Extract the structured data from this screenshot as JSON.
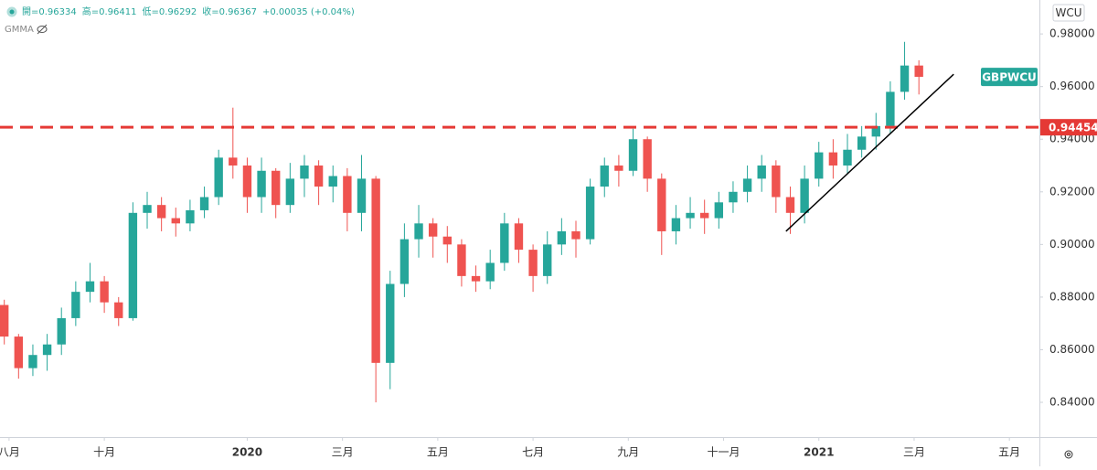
{
  "chart_data": {
    "type": "candlestick",
    "header": [
      "開=0.96334",
      "高=0.96411",
      "低=0.96292",
      "收=0.96367",
      "+0.00035 (+0.04%)"
    ],
    "indicator": "GMMA",
    "scale_label": "WCU",
    "symbol_tag": "GBPWCU",
    "symbol_price": 0.96367,
    "up_color": "#26a69a",
    "down_color": "#ef5350",
    "x": [
      -0.1,
      0.2,
      0.5,
      0.8,
      1.1,
      1.4,
      1.7,
      2.0,
      2.3,
      2.6,
      2.9,
      3.2,
      3.5,
      3.8,
      4.1,
      4.4,
      4.7,
      5.0,
      5.3,
      5.6,
      5.9,
      6.2,
      6.5,
      6.8,
      7.1,
      7.4,
      7.7,
      8.0,
      8.3,
      8.6,
      8.9,
      9.2,
      9.5,
      9.8,
      10.1,
      10.4,
      10.7,
      11.0,
      11.3,
      11.6,
      11.9,
      12.2,
      12.5,
      12.8,
      13.1,
      13.4,
      13.7,
      14.0,
      14.3,
      14.6,
      14.9,
      15.2,
      15.5,
      15.8,
      16.1,
      16.4,
      16.7,
      17.0,
      17.3,
      17.6,
      17.9,
      18.2,
      18.5,
      18.8,
      19.1
    ],
    "open": [
      0.877,
      0.865,
      0.853,
      0.858,
      0.862,
      0.872,
      0.882,
      0.886,
      0.878,
      0.872,
      0.912,
      0.915,
      0.91,
      0.908,
      0.913,
      0.918,
      0.933,
      0.93,
      0.918,
      0.928,
      0.915,
      0.925,
      0.93,
      0.922,
      0.926,
      0.912,
      0.925,
      0.855,
      0.885,
      0.902,
      0.908,
      0.903,
      0.9,
      0.888,
      0.886,
      0.893,
      0.908,
      0.898,
      0.888,
      0.9,
      0.905,
      0.902,
      0.922,
      0.93,
      0.928,
      0.94,
      0.925,
      0.905,
      0.91,
      0.912,
      0.91,
      0.916,
      0.92,
      0.925,
      0.93,
      0.918,
      0.912,
      0.925,
      0.935,
      0.93,
      0.936,
      0.941,
      0.945,
      0.958,
      0.968
    ],
    "high": [
      0.879,
      0.866,
      0.862,
      0.866,
      0.876,
      0.886,
      0.893,
      0.888,
      0.88,
      0.916,
      0.92,
      0.918,
      0.914,
      0.917,
      0.922,
      0.936,
      0.952,
      0.933,
      0.933,
      0.929,
      0.931,
      0.934,
      0.932,
      0.93,
      0.929,
      0.934,
      0.926,
      0.89,
      0.908,
      0.915,
      0.91,
      0.907,
      0.902,
      0.892,
      0.898,
      0.912,
      0.91,
      0.9,
      0.905,
      0.91,
      0.909,
      0.925,
      0.933,
      0.934,
      0.944,
      0.941,
      0.927,
      0.915,
      0.918,
      0.917,
      0.92,
      0.924,
      0.93,
      0.934,
      0.932,
      0.922,
      0.93,
      0.939,
      0.94,
      0.942,
      0.945,
      0.95,
      0.962,
      0.977,
      0.97
    ],
    "low": [
      0.862,
      0.849,
      0.85,
      0.852,
      0.858,
      0.869,
      0.878,
      0.874,
      0.869,
      0.871,
      0.906,
      0.905,
      0.903,
      0.905,
      0.91,
      0.915,
      0.925,
      0.912,
      0.912,
      0.91,
      0.912,
      0.918,
      0.915,
      0.916,
      0.905,
      0.905,
      0.84,
      0.845,
      0.88,
      0.895,
      0.895,
      0.893,
      0.884,
      0.882,
      0.883,
      0.89,
      0.893,
      0.882,
      0.885,
      0.896,
      0.895,
      0.9,
      0.918,
      0.922,
      0.926,
      0.92,
      0.896,
      0.9,
      0.906,
      0.904,
      0.906,
      0.912,
      0.916,
      0.92,
      0.912,
      0.904,
      0.908,
      0.922,
      0.925,
      0.927,
      0.933,
      0.936,
      0.942,
      0.955,
      0.957
    ],
    "close": [
      0.865,
      0.853,
      0.858,
      0.862,
      0.872,
      0.882,
      0.886,
      0.878,
      0.872,
      0.912,
      0.915,
      0.91,
      0.908,
      0.913,
      0.918,
      0.933,
      0.93,
      0.918,
      0.928,
      0.915,
      0.925,
      0.93,
      0.922,
      0.926,
      0.912,
      0.925,
      0.855,
      0.885,
      0.902,
      0.908,
      0.903,
      0.9,
      0.888,
      0.886,
      0.893,
      0.908,
      0.898,
      0.888,
      0.9,
      0.905,
      0.902,
      0.922,
      0.93,
      0.928,
      0.94,
      0.925,
      0.905,
      0.91,
      0.912,
      0.91,
      0.916,
      0.92,
      0.925,
      0.93,
      0.918,
      0.912,
      0.925,
      0.935,
      0.93,
      0.936,
      0.941,
      0.945,
      0.958,
      0.968,
      0.9637
    ],
    "xlim": [
      -0.19,
      21.63
    ],
    "ylim": [
      0.8268,
      0.9929
    ],
    "xticks": [
      {
        "value": 0,
        "label": "八月"
      },
      {
        "value": 2,
        "label": "十月"
      },
      {
        "value": 5,
        "label": "2020"
      },
      {
        "value": 7,
        "label": "三月"
      },
      {
        "value": 9,
        "label": "五月"
      },
      {
        "value": 11,
        "label": "七月"
      },
      {
        "value": 13,
        "label": "九月"
      },
      {
        "value": 15,
        "label": "十一月"
      },
      {
        "value": 17,
        "label": "2021"
      },
      {
        "value": 19,
        "label": "三月"
      },
      {
        "value": 21,
        "label": "五月"
      }
    ],
    "yticks": [
      {
        "value": 0.84,
        "label": "0.84000"
      },
      {
        "value": 0.86,
        "label": "0.86000"
      },
      {
        "value": 0.88,
        "label": "0.88000"
      },
      {
        "value": 0.9,
        "label": "0.90000"
      },
      {
        "value": 0.92,
        "label": "0.92000"
      },
      {
        "value": 0.94,
        "label": "0.94000"
      },
      {
        "value": 0.96,
        "label": "0.96000"
      },
      {
        "value": 0.98,
        "label": "0.98000"
      }
    ],
    "hline": {
      "value": 0.94454,
      "label": "0.94454",
      "color": "#e53935"
    },
    "trend_line": {
      "x": [
        16.31,
        19.83
      ],
      "y": [
        0.905,
        0.9647
      ],
      "color": "#000000"
    }
  }
}
